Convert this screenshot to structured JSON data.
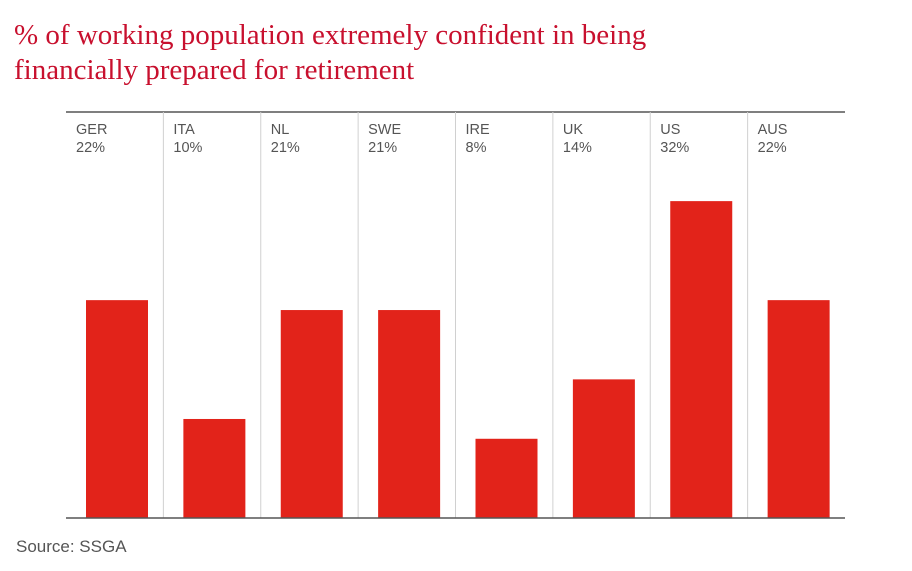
{
  "chart_data": {
    "type": "bar",
    "title_lines": [
      "% of working population extremely confident in being",
      "financially prepared for retirement"
    ],
    "categories": [
      "GER",
      "ITA",
      "NL",
      "SWE",
      "IRE",
      "UK",
      "US",
      "AUS"
    ],
    "values": [
      22,
      10,
      21,
      21,
      8,
      14,
      32,
      22
    ],
    "value_labels": [
      "22%",
      "10%",
      "21%",
      "21%",
      "8%",
      "14%",
      "32%",
      "22%"
    ],
    "color": "#e2231a",
    "ylim": [
      0,
      41
    ],
    "source": "Source: SSGA"
  }
}
